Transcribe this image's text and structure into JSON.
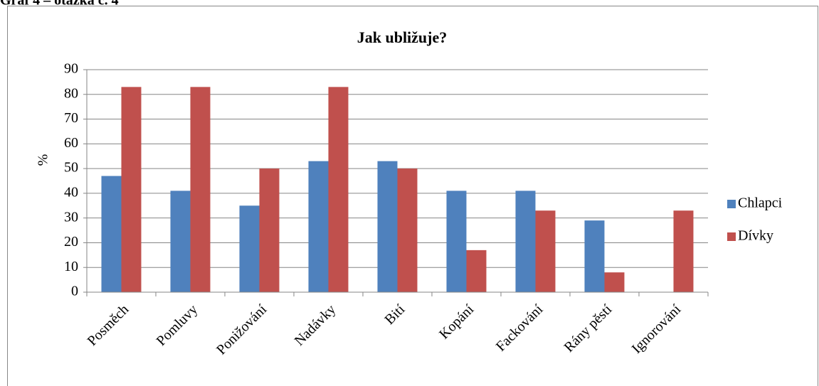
{
  "heading": "Graf 4 – otázka č. 4",
  "chart_data": {
    "type": "bar",
    "title": "Jak ubližuje?",
    "y_label": "%",
    "categories": [
      "Posměch",
      "Pomluvy",
      "Ponižování",
      "Nadávky",
      "Bití",
      "Kopání",
      "Fackování",
      "Rány pěstí",
      "Ignorování"
    ],
    "series": [
      {
        "name": "Chlapci",
        "color": "#4f81bd",
        "values": [
          47,
          41,
          35,
          53,
          53,
          41,
          41,
          29,
          0
        ]
      },
      {
        "name": "Dívky",
        "color": "#c0504d",
        "values": [
          83,
          83,
          50,
          83,
          50,
          17,
          33,
          8,
          33
        ]
      }
    ],
    "ylim": [
      0,
      90
    ],
    "yticks": [
      0,
      10,
      20,
      30,
      40,
      50,
      60,
      70,
      80,
      90
    ],
    "grid": true,
    "legend": "right"
  }
}
